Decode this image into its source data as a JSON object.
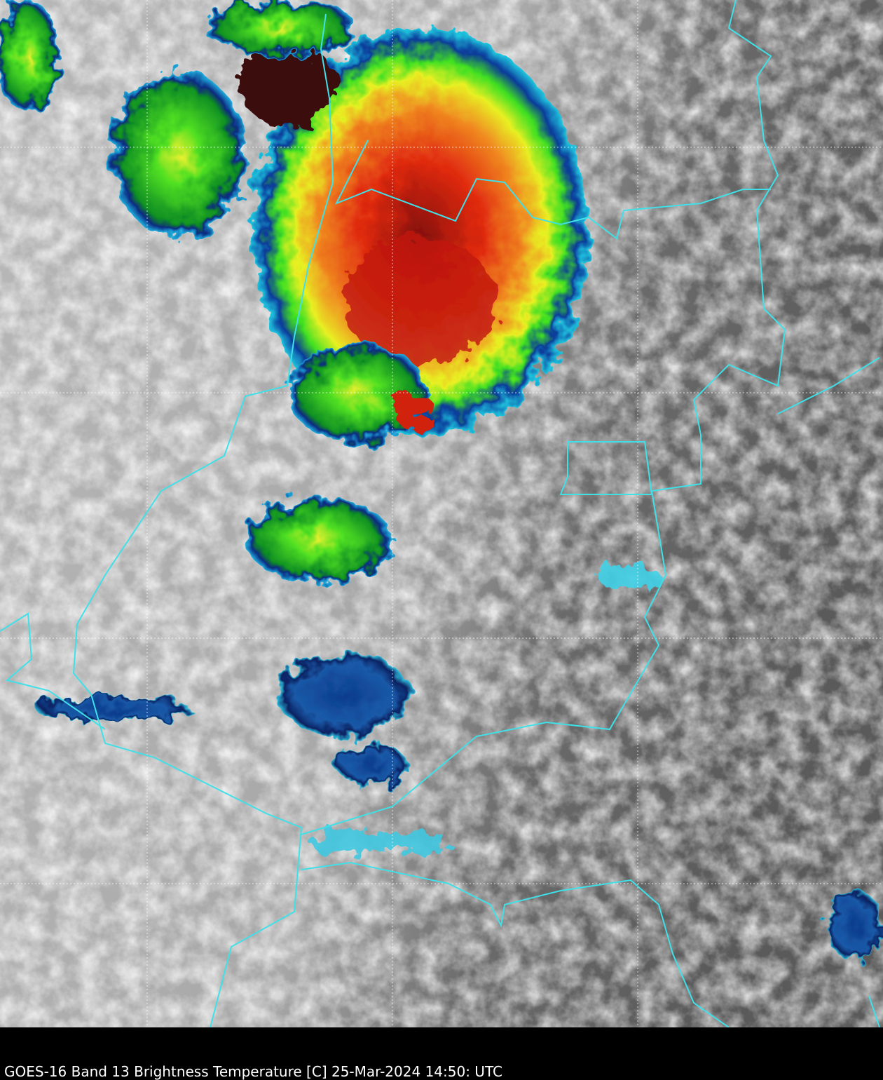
{
  "caption": "GOES-16 Band 13  Brightness Temperature [C] 25-Mar-2024 14:50: UTC"
}
